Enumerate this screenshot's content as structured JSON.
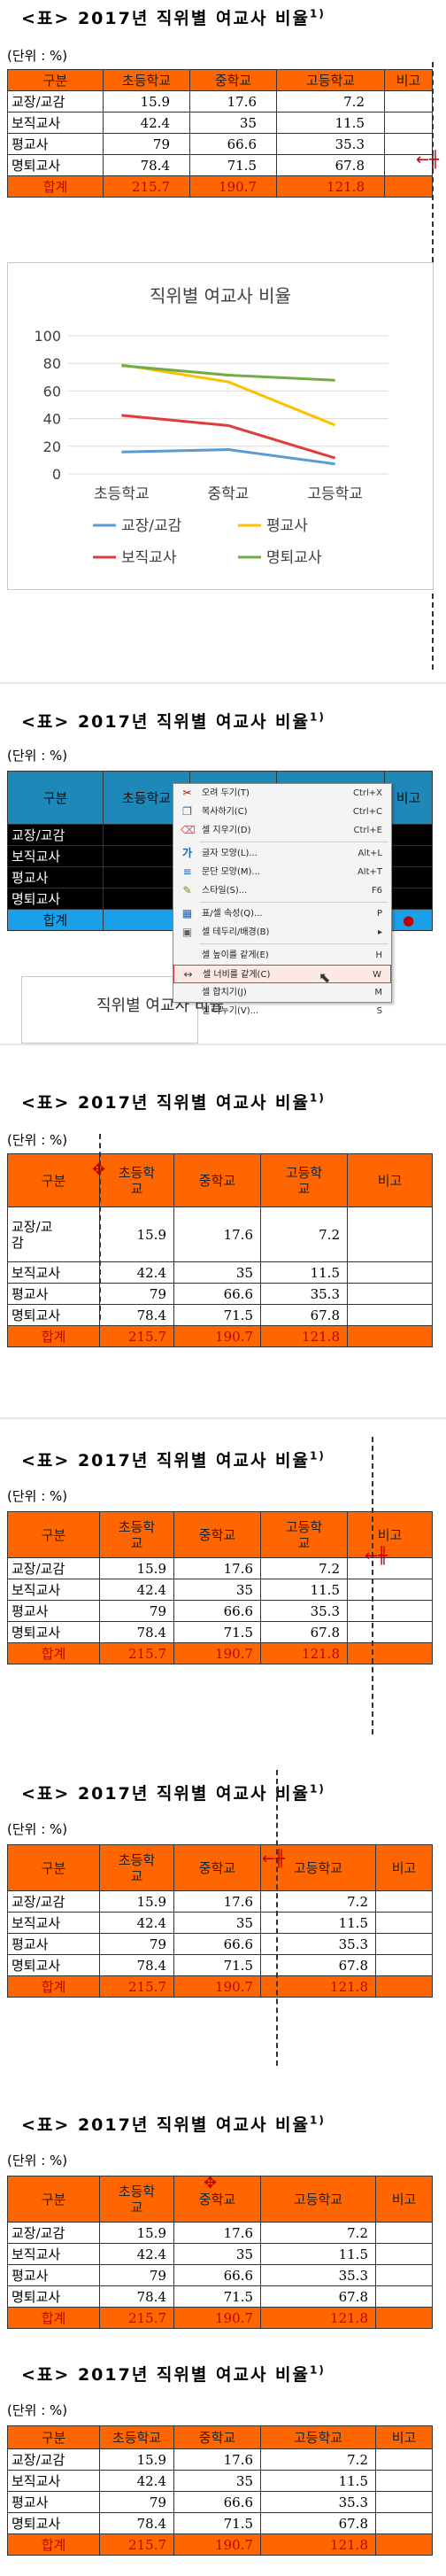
{
  "title": {
    "prefix": "<표>",
    "text": "2017년 직위별 여교사 비율",
    "footnote": "1)"
  },
  "unit": "(단위 : %)",
  "table": {
    "headers": [
      "구분",
      "초등학교",
      "중학교",
      "고등학교",
      "비고"
    ],
    "header_split": {
      "elementary": [
        "초등학",
        "교"
      ],
      "middle": "중학교",
      "high": [
        "고등학",
        "교"
      ]
    },
    "rows": [
      {
        "label": "교장/교감",
        "label_split": [
          "교장/교",
          "감"
        ],
        "values": [
          "15.9",
          "17.6",
          "7.2"
        ]
      },
      {
        "label": "보직교사",
        "values": [
          "42.4",
          "35",
          "11.5"
        ]
      },
      {
        "label": "평교사",
        "values": [
          "79",
          "66.6",
          "35.3"
        ]
      },
      {
        "label": "명퇴교사",
        "values": [
          "78.4",
          "71.5",
          "67.8"
        ]
      }
    ],
    "total": {
      "label": "합계",
      "values": [
        "215.7",
        "190.7",
        "121.8"
      ]
    }
  },
  "chart_data": {
    "type": "line",
    "title": "직위별 여교사 비율",
    "categories": [
      "초등학교",
      "중학교",
      "고등학교"
    ],
    "ylim": [
      0,
      100
    ],
    "yticks": [
      "0",
      "20",
      "40",
      "60",
      "80",
      "100"
    ],
    "grid": true,
    "legend_position": "bottom",
    "series": [
      {
        "name": "교장/교감",
        "values": [
          15.9,
          17.6,
          7.2
        ],
        "color": "#5b9bd5"
      },
      {
        "name": "평교사",
        "values": [
          79,
          66.6,
          35.3
        ],
        "color": "#ffc000"
      },
      {
        "name": "보직교사",
        "values": [
          42.4,
          35,
          11.5
        ],
        "color": "#e03c3c"
      },
      {
        "name": "명퇴교사",
        "values": [
          78.4,
          71.5,
          67.8
        ],
        "color": "#70ad47"
      }
    ]
  },
  "context_menu": {
    "items": [
      {
        "label": "오려 두기(T)",
        "shortcut": "Ctrl+X",
        "icon": "scissors-icon"
      },
      {
        "label": "복사하기(C)",
        "shortcut": "Ctrl+C",
        "icon": "copy-icon"
      },
      {
        "label": "셀 지우기(D)",
        "shortcut": "Ctrl+E",
        "icon": "eraser-icon"
      },
      {
        "label": "글자 모양(L)...",
        "shortcut": "Alt+L",
        "icon": "font-icon"
      },
      {
        "label": "문단 모양(M)...",
        "shortcut": "Alt+T",
        "icon": "paragraph-icon"
      },
      {
        "label": "스타일(S)...",
        "shortcut": "F6",
        "icon": "style-icon"
      },
      {
        "label": "표/셀 속성(Q)...",
        "shortcut": "P",
        "icon": "table-icon"
      },
      {
        "label": "셀 테두리/배경(B)",
        "shortcut": "▸",
        "icon": "border-icon"
      },
      {
        "label": "셀 높이를 같게(E)",
        "shortcut": "H",
        "icon": "row-height-icon"
      },
      {
        "label": "셀 너비를 같게(C)",
        "shortcut": "W",
        "icon": "col-width-icon"
      },
      {
        "label": "셀 합치기(J)",
        "shortcut": "M",
        "icon": "merge-icon"
      },
      {
        "label": "셀 나누기(V)...",
        "shortcut": "S",
        "icon": "split-icon"
      }
    ]
  },
  "glyphs": {
    "x_mark": "✕",
    "lines_icon": "≡",
    "brush_icon": "✎",
    "square_icon": "▦",
    "border_icon": "▣",
    "arrow_icon": "↔",
    "eraser_icon": "⌫",
    "copy_icon": "❐",
    "scissors_icon": "✂",
    "resize_arrow": "←╫",
    "cursor_glyph": "⇱",
    "move_icon": "✥",
    "bullet": "●"
  }
}
